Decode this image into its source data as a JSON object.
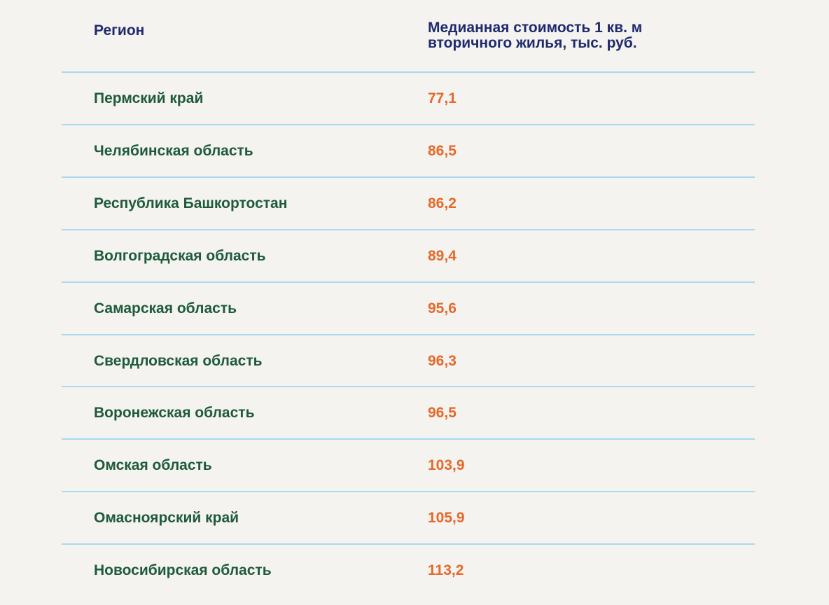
{
  "table": {
    "header": [
      "Регион",
      "Медианная стоимость 1 кв. м вторичного жилья, тыс. руб."
    ],
    "rows": [
      [
        "Пермский край",
        "77,1"
      ],
      [
        "Челябинская область",
        "86,5"
      ],
      [
        "Республика Башкортостан",
        "86,2"
      ],
      [
        "Волгоградская область",
        "89,4"
      ],
      [
        "Самарская область",
        "95,6"
      ],
      [
        "Свердловская область",
        "96,3"
      ],
      [
        "Воронежская область",
        "96,5"
      ],
      [
        "Омская область",
        "103,9"
      ],
      [
        "Омасноярский край",
        "105,9"
      ],
      [
        "Новосибирская область",
        "113,2"
      ]
    ]
  }
}
